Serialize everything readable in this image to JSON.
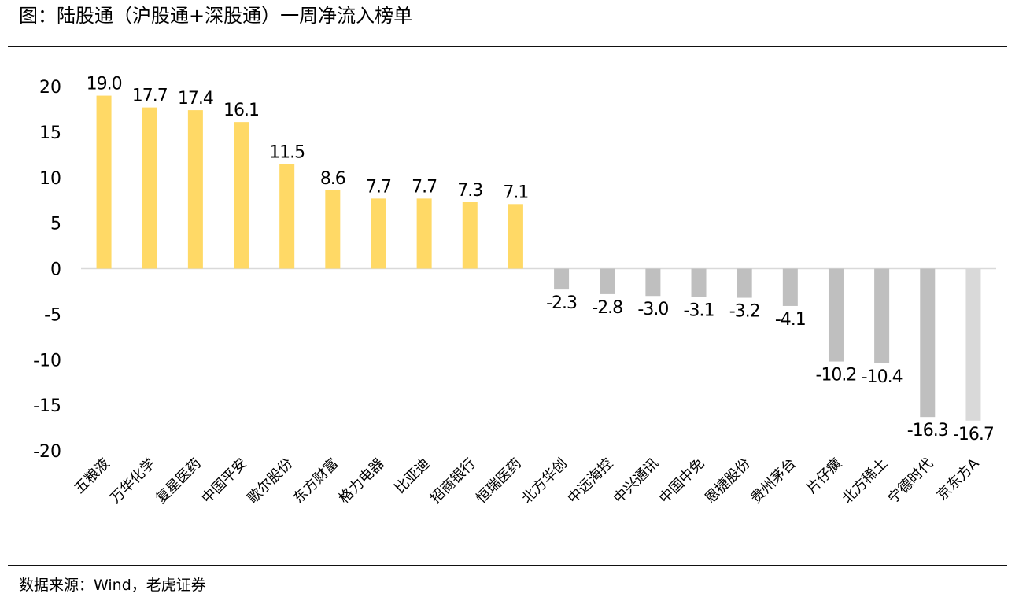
{
  "page": {
    "title": "图：陆股通（沪股通+深股通）一周净流入榜单",
    "source": "数据来源：Wind，老虎证券"
  },
  "colors": {
    "positive": "#FFD966",
    "negative": "#BFBFBF",
    "negative_light": "#D9D9D9",
    "baseline": "#D9D9D9"
  },
  "chart_data": {
    "type": "bar",
    "title": "图：陆股通（沪股通+深股通）一周净流入榜单",
    "xlabel": "",
    "ylabel": "",
    "ylim": [
      -20,
      20
    ],
    "yticks": [
      20,
      15,
      10,
      5,
      0,
      -5,
      -10,
      -15,
      -20
    ],
    "ytick_labels": [
      "20",
      "15",
      "10",
      "5",
      "0",
      "-5",
      "-10",
      "-15",
      "-20"
    ],
    "grid": false,
    "legend": "none",
    "categories": [
      "五粮液",
      "万华化学",
      "复星医药",
      "中国平安",
      "歌尔股份",
      "东方财富",
      "格力电器",
      "比亚迪",
      "招商银行",
      "恒瑞医药",
      "北方华创",
      "中远海控",
      "中兴通讯",
      "中国中免",
      "恩捷股份",
      "贵州茅台",
      "片仔癀",
      "北方稀土",
      "宁德时代",
      "京东方A"
    ],
    "values": [
      19.0,
      17.7,
      17.4,
      16.1,
      11.5,
      8.6,
      7.7,
      7.7,
      7.3,
      7.1,
      -2.3,
      -2.8,
      -3.0,
      -3.1,
      -3.2,
      -4.1,
      -10.2,
      -10.4,
      -16.3,
      -16.7
    ],
    "data_labels": [
      "19.0",
      "17.7",
      "17.4",
      "16.1",
      "11.5",
      "8.6",
      "7.7",
      "7.7",
      "7.3",
      "7.1",
      "-2.3",
      "-2.8",
      "-3.0",
      "-3.1",
      "-3.2",
      "-4.1",
      "-10.2",
      "-10.4",
      "-16.3",
      "-16.7"
    ]
  }
}
